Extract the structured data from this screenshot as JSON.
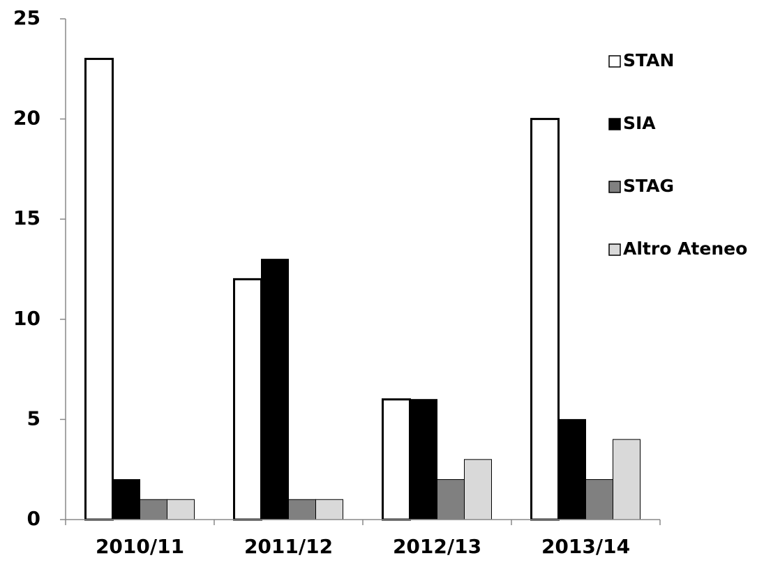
{
  "chart_data": {
    "type": "bar",
    "categories": [
      "2010/11",
      "2011/12",
      "2012/13",
      "2013/14"
    ],
    "series": [
      {
        "name": "STAN",
        "color": "#ffffff",
        "values": [
          23,
          12,
          6,
          20
        ]
      },
      {
        "name": "SIA",
        "color": "#000000",
        "values": [
          2,
          13,
          6,
          5
        ]
      },
      {
        "name": "STAG",
        "color": "#808080",
        "values": [
          1,
          1,
          2,
          2
        ]
      },
      {
        "name": "Altro Ateneo",
        "color": "#d9d9d9",
        "values": [
          1,
          1,
          3,
          4
        ]
      }
    ],
    "ylim": [
      0,
      25
    ],
    "yticks": [
      0,
      5,
      10,
      15,
      20,
      25
    ],
    "grid": false,
    "legend": "right"
  }
}
